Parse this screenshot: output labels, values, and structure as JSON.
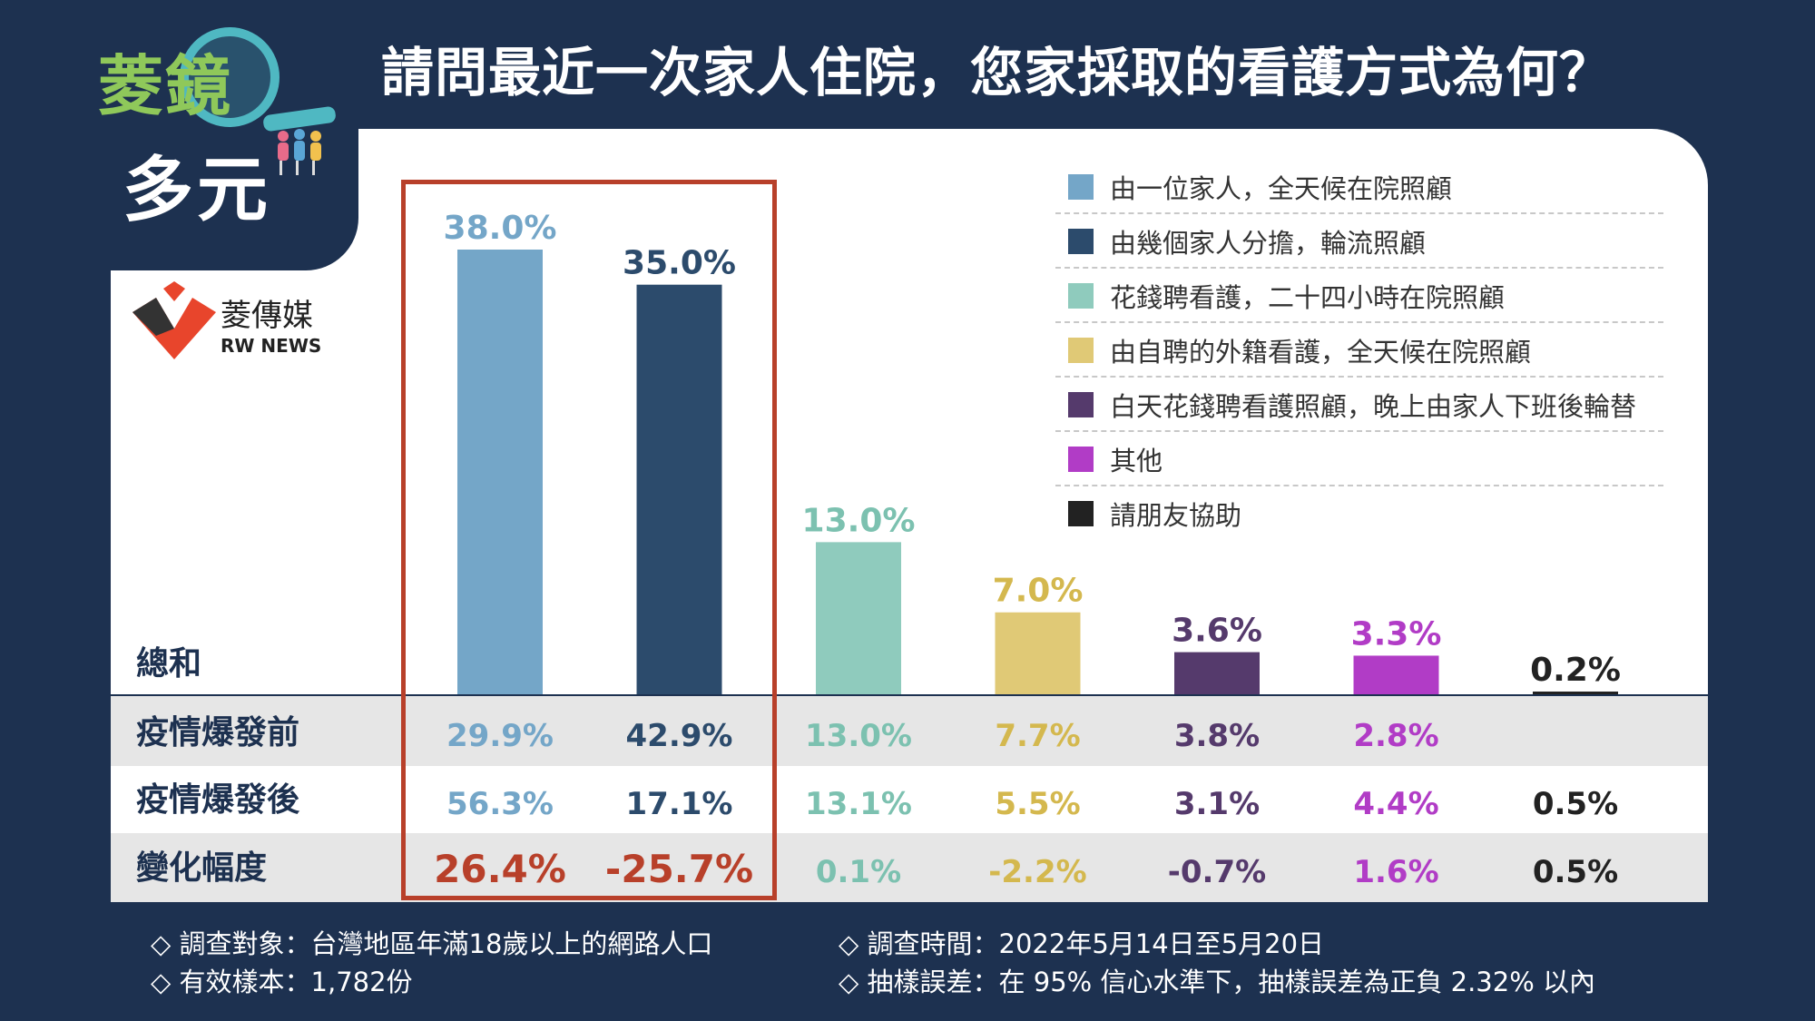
{
  "title": "請問最近一次家人住院，您家採取的看護方式為何？",
  "logo": {
    "line1": "菱鏡",
    "line2": "多元"
  },
  "media": {
    "name": "菱傳媒",
    "en": "RW NEWS"
  },
  "row_labels": {
    "total": "總和",
    "before": "疫情爆發前",
    "after": "疫情爆發後",
    "change": "變化幅度"
  },
  "colors": {
    "background": "#1d3150",
    "highlight": "#b8402a",
    "row_band": "#e6e6e6"
  },
  "chart_data": {
    "type": "bar",
    "categories": [
      "由一位家人，全天候在院照顧",
      "由幾個家人分擔，輪流照顧",
      "花錢聘看護，二十四小時在院照顧",
      "由自聘的外籍看護，全天候在院照顧",
      "白天花錢聘看護照顧，晚上由家人下班後輪替",
      "其他",
      "請朋友協助"
    ],
    "colors": [
      "#74a6c8",
      "#2c4b6c",
      "#8fcbbd",
      "#e0c976",
      "#553a6c",
      "#b13cc6",
      "#222222"
    ],
    "values": [
      38.0,
      35.0,
      13.0,
      7.0,
      3.6,
      3.3,
      0.2
    ],
    "value_labels": [
      "38.0%",
      "35.0%",
      "13.0%",
      "7.0%",
      "3.6%",
      "3.3%",
      "0.2%"
    ],
    "ylim": [
      0,
      40
    ],
    "table": {
      "before": [
        "29.9%",
        "42.9%",
        "13.0%",
        "7.7%",
        "3.8%",
        "2.8%",
        ""
      ],
      "after": [
        "56.3%",
        "17.1%",
        "13.1%",
        "5.5%",
        "3.1%",
        "4.4%",
        "0.5%"
      ],
      "change": [
        "26.4%",
        "-25.7%",
        "0.1%",
        "-2.2%",
        "-0.7%",
        "1.6%",
        "0.5%"
      ]
    },
    "legend_position": "top-right",
    "highlighted": [
      0,
      1
    ]
  },
  "footer": {
    "target": "◇ 調查對象：台灣地區年滿18歲以上的網路人口",
    "sample": "◇ 有效樣本：1,782份",
    "time": "◇ 調查時間：2022年5月14日至5月20日",
    "error": "◇ 抽樣誤差：在 95% 信心水準下，抽樣誤差為正負 2.32% 以內"
  }
}
